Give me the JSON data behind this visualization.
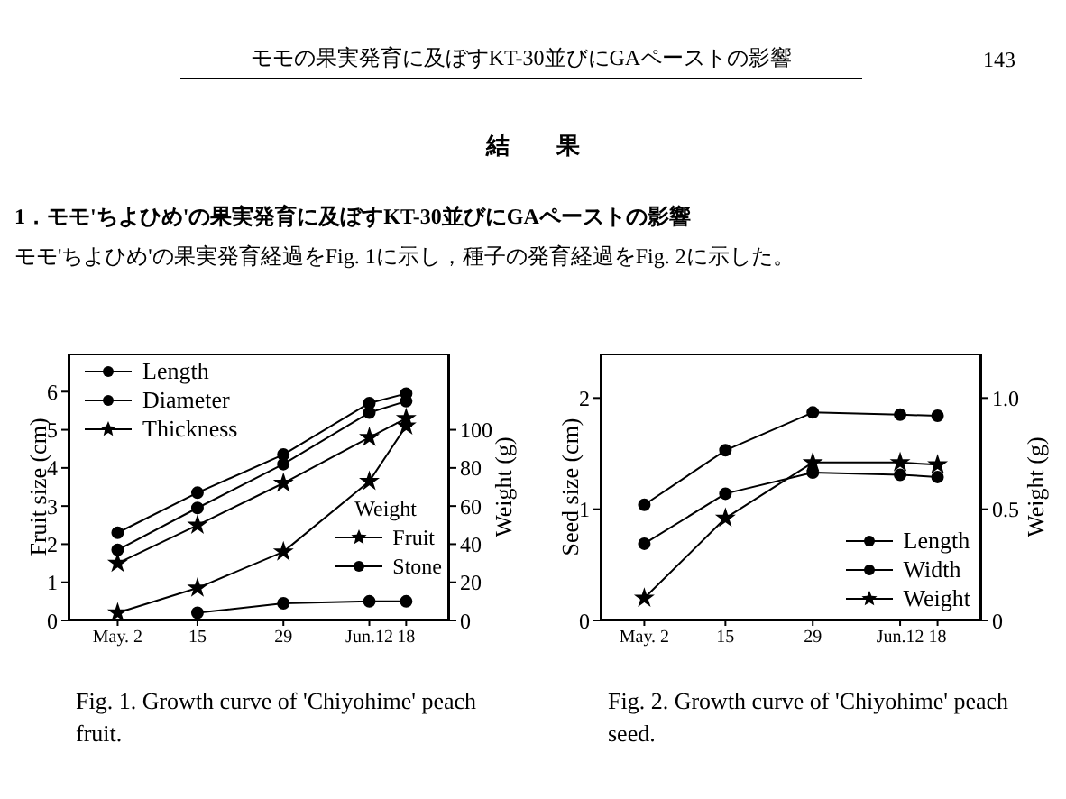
{
  "chart_data": [
    {
      "type": "line",
      "title": "Fig. 1.  Growth curve of 'Chiyohime' peach fruit.",
      "annotations": [
        "モモの果実発育に及ぼすKT-30並びにGAペーストの影響",
        "143",
        "結　　果",
        "1．モモ'ちよひめ'の果実発育に及ぼすKT-30並びにGAペーストの影響",
        "モモ'ちよひめ'の果実発育経過をFig. 1に示し，種子の発育経過をFig. 2に示した。"
      ],
      "x": [
        "--05-02",
        "--05-15",
        "--05-29",
        "--06-12",
        "--06-18"
      ],
      "xlim": [
        "--04-24",
        "--06-25"
      ],
      "xticks": [
        {
          "value": "--05-02",
          "label": "May. 2"
        },
        {
          "value": "--05-15",
          "label": "15"
        },
        {
          "value": "--05-29",
          "label": "29"
        },
        {
          "value": "--06-12",
          "label": "Jun.12"
        },
        {
          "value": "--06-18",
          "label": "18"
        }
      ],
      "ylabel": "Fruit size (cm)",
      "y2label": "Weight (g)",
      "ylim": [
        0,
        7
      ],
      "yticks": [
        0,
        1,
        2,
        3,
        4,
        5,
        6
      ],
      "y2lim": [
        0,
        140
      ],
      "y2ticks": [
        0,
        20,
        40,
        60,
        80,
        100
      ],
      "legend": "top left",
      "legend_title": "Weight",
      "grid": false,
      "line_style": "solid",
      "series": [
        {
          "name": "Length",
          "color": "#000000",
          "marker": "circle",
          "values": [
            2.3,
            3.35,
            4.35,
            5.7,
            5.95
          ]
        },
        {
          "name": "Diameter",
          "color": "#000000",
          "marker": "circle",
          "values": [
            1.85,
            2.95,
            4.1,
            5.45,
            5.75
          ]
        },
        {
          "name": "Thickness",
          "color": "#000000",
          "marker": "star",
          "values": [
            1.5,
            2.5,
            3.6,
            4.8,
            5.3
          ]
        },
        {
          "name": "Fruit",
          "color": "#000000",
          "marker": "star",
          "axis": "y2",
          "values": [
            4,
            17,
            36,
            73,
            102
          ]
        },
        {
          "name": "Stone",
          "color": "#000000",
          "marker": "circle",
          "axis": "y2",
          "values": [
            null,
            4,
            9,
            10,
            10
          ]
        }
      ]
    },
    {
      "type": "line",
      "title": "Fig. 2.  Growth curve of 'Chiyohime' peach seed.",
      "x": [
        "--05-02",
        "--05-15",
        "--05-29",
        "--06-12",
        "--06-18"
      ],
      "xlim": [
        "--04-25",
        "--06-25"
      ],
      "xticks": [
        {
          "value": "--05-02",
          "label": "May. 2"
        },
        {
          "value": "--05-15",
          "label": "15"
        },
        {
          "value": "--05-29",
          "label": "29"
        },
        {
          "value": "--06-12",
          "label": "Jun.12"
        },
        {
          "value": "--06-18",
          "label": "18"
        }
      ],
      "ylabel": "Seed size (cm)",
      "y2label": "Weight (g)",
      "ylim": [
        0,
        2.4
      ],
      "yticks": [
        0,
        1,
        2
      ],
      "y2lim": [
        0,
        1.2
      ],
      "y2ticks": [
        {
          "value": 0,
          "label": "0"
        },
        {
          "value": 0.5,
          "label": "0.5"
        },
        {
          "value": 1,
          "label": "1.0"
        }
      ],
      "legend": "bottom right",
      "grid": false,
      "line_style": "solid",
      "series": [
        {
          "name": "Length",
          "color": "#000000",
          "marker": "circle",
          "values": [
            1.04,
            1.53,
            1.87,
            1.85,
            1.84
          ]
        },
        {
          "name": "Width",
          "color": "#000000",
          "marker": "circle",
          "values": [
            0.69,
            1.14,
            1.33,
            1.31,
            1.29
          ]
        },
        {
          "name": "Weight",
          "color": "#000000",
          "marker": "star",
          "axis": "y2",
          "values": [
            0.1,
            0.46,
            0.71,
            0.71,
            0.7
          ]
        }
      ]
    }
  ]
}
